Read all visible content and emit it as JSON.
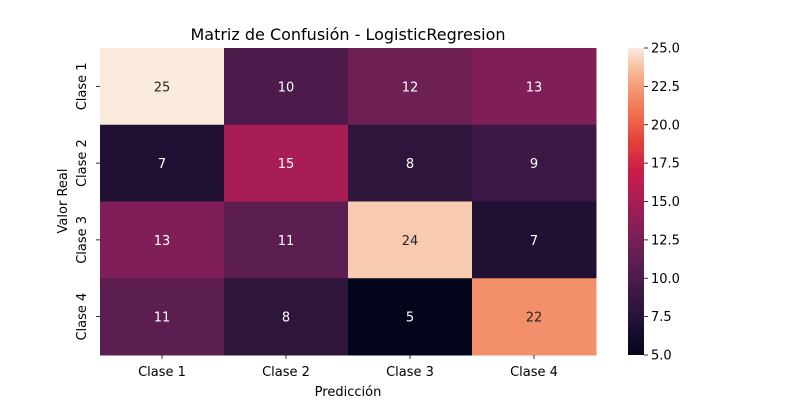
{
  "chart_data": {
    "type": "heatmap",
    "title": "Matriz de Confusión - LogisticRegresion",
    "xlabel": "Predicción",
    "ylabel": "Valor Real",
    "x_categories": [
      "Clase 1",
      "Clase 2",
      "Clase 3",
      "Clase 4"
    ],
    "y_categories": [
      "Clase 1",
      "Clase 2",
      "Clase 3",
      "Clase 4"
    ],
    "values": [
      [
        25,
        10,
        12,
        13
      ],
      [
        7,
        15,
        8,
        9
      ],
      [
        13,
        11,
        24,
        7
      ],
      [
        11,
        8,
        5,
        22
      ]
    ],
    "colorbar": {
      "range": [
        5.0,
        25.0
      ],
      "ticks": [
        5.0,
        7.5,
        10.0,
        12.5,
        15.0,
        17.5,
        20.0,
        22.5,
        25.0
      ],
      "tick_labels": [
        "5.0",
        "7.5",
        "10.0",
        "12.5",
        "15.0",
        "17.5",
        "20.0",
        "22.5",
        "25.0"
      ],
      "colormap": "rocket"
    },
    "annotate": true,
    "grid": false
  }
}
